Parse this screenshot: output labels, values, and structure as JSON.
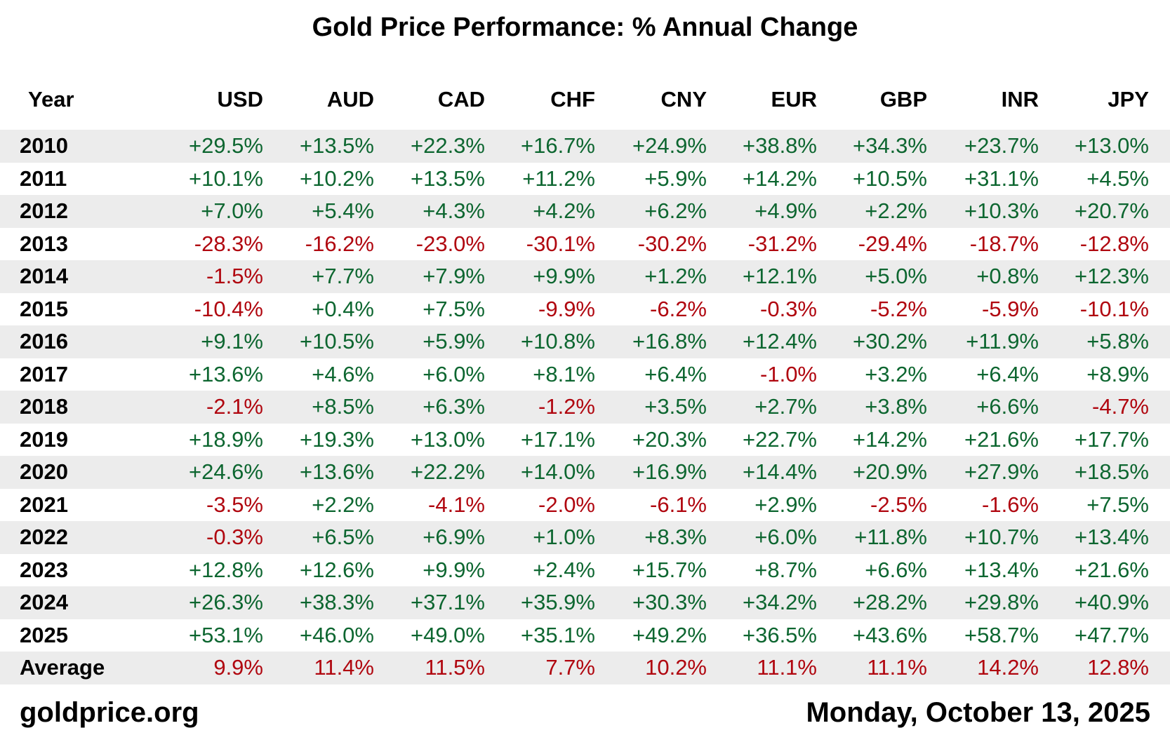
{
  "chart_data": {
    "type": "table",
    "title": "Gold Price Performance: % Annual Change",
    "columns": [
      "Year",
      "USD",
      "AUD",
      "CAD",
      "CHF",
      "CNY",
      "EUR",
      "GBP",
      "INR",
      "JPY"
    ],
    "rows": [
      {
        "year": "2010",
        "values": [
          "+29.5%",
          "+13.5%",
          "+22.3%",
          "+16.7%",
          "+24.9%",
          "+38.8%",
          "+34.3%",
          "+23.7%",
          "+13.0%"
        ]
      },
      {
        "year": "2011",
        "values": [
          "+10.1%",
          "+10.2%",
          "+13.5%",
          "+11.2%",
          "+5.9%",
          "+14.2%",
          "+10.5%",
          "+31.1%",
          "+4.5%"
        ]
      },
      {
        "year": "2012",
        "values": [
          "+7.0%",
          "+5.4%",
          "+4.3%",
          "+4.2%",
          "+6.2%",
          "+4.9%",
          "+2.2%",
          "+10.3%",
          "+20.7%"
        ]
      },
      {
        "year": "2013",
        "values": [
          "-28.3%",
          "-16.2%",
          "-23.0%",
          "-30.1%",
          "-30.2%",
          "-31.2%",
          "-29.4%",
          "-18.7%",
          "-12.8%"
        ]
      },
      {
        "year": "2014",
        "values": [
          "-1.5%",
          "+7.7%",
          "+7.9%",
          "+9.9%",
          "+1.2%",
          "+12.1%",
          "+5.0%",
          "+0.8%",
          "+12.3%"
        ]
      },
      {
        "year": "2015",
        "values": [
          "-10.4%",
          "+0.4%",
          "+7.5%",
          "-9.9%",
          "-6.2%",
          "-0.3%",
          "-5.2%",
          "-5.9%",
          "-10.1%"
        ]
      },
      {
        "year": "2016",
        "values": [
          "+9.1%",
          "+10.5%",
          "+5.9%",
          "+10.8%",
          "+16.8%",
          "+12.4%",
          "+30.2%",
          "+11.9%",
          "+5.8%"
        ]
      },
      {
        "year": "2017",
        "values": [
          "+13.6%",
          "+4.6%",
          "+6.0%",
          "+8.1%",
          "+6.4%",
          "-1.0%",
          "+3.2%",
          "+6.4%",
          "+8.9%"
        ]
      },
      {
        "year": "2018",
        "values": [
          "-2.1%",
          "+8.5%",
          "+6.3%",
          "-1.2%",
          "+3.5%",
          "+2.7%",
          "+3.8%",
          "+6.6%",
          "-4.7%"
        ]
      },
      {
        "year": "2019",
        "values": [
          "+18.9%",
          "+19.3%",
          "+13.0%",
          "+17.1%",
          "+20.3%",
          "+22.7%",
          "+14.2%",
          "+21.6%",
          "+17.7%"
        ]
      },
      {
        "year": "2020",
        "values": [
          "+24.6%",
          "+13.6%",
          "+22.2%",
          "+14.0%",
          "+16.9%",
          "+14.4%",
          "+20.9%",
          "+27.9%",
          "+18.5%"
        ]
      },
      {
        "year": "2021",
        "values": [
          "-3.5%",
          "+2.2%",
          "-4.1%",
          "-2.0%",
          "-6.1%",
          "+2.9%",
          "-2.5%",
          "-1.6%",
          "+7.5%"
        ]
      },
      {
        "year": "2022",
        "values": [
          "-0.3%",
          "+6.5%",
          "+6.9%",
          "+1.0%",
          "+8.3%",
          "+6.0%",
          "+11.8%",
          "+10.7%",
          "+13.4%"
        ]
      },
      {
        "year": "2023",
        "values": [
          "+12.8%",
          "+12.6%",
          "+9.9%",
          "+2.4%",
          "+15.7%",
          "+8.7%",
          "+6.6%",
          "+13.4%",
          "+21.6%"
        ]
      },
      {
        "year": "2024",
        "values": [
          "+26.3%",
          "+38.3%",
          "+37.1%",
          "+35.9%",
          "+30.3%",
          "+34.2%",
          "+28.2%",
          "+29.8%",
          "+40.9%"
        ]
      },
      {
        "year": "2025",
        "values": [
          "+53.1%",
          "+46.0%",
          "+49.0%",
          "+35.1%",
          "+49.2%",
          "+36.5%",
          "+43.6%",
          "+58.7%",
          "+47.7%"
        ]
      }
    ],
    "average": {
      "label": "Average",
      "values": [
        "9.9%",
        "11.4%",
        "11.5%",
        "7.7%",
        "10.2%",
        "11.1%",
        "11.1%",
        "14.2%",
        "12.8%"
      ]
    },
    "colors": {
      "positive": "#0d6630",
      "negative": "#b0060f",
      "average": "#b0060f",
      "row_shade": "#ececec"
    }
  },
  "footer": {
    "source": "goldprice.org",
    "date": "Monday, October 13, 2025"
  }
}
